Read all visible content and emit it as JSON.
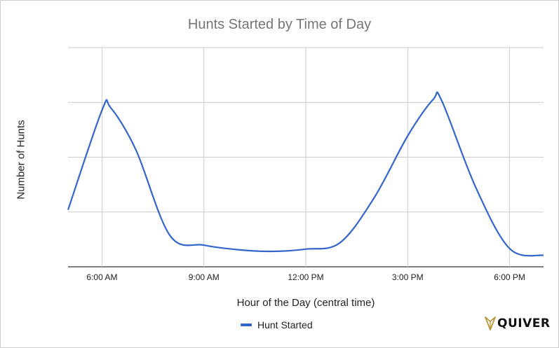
{
  "chart_data": {
    "type": "line",
    "title": "Hunts Started by Time of Day",
    "xlabel": "Hour of the Day (central time)",
    "ylabel": "Number of Hunts",
    "xlim": [
      "5:00 AM",
      "7:00 PM"
    ],
    "x_ticks": [
      "6:00 AM",
      "9:00 AM",
      "12:00 PM",
      "3:00 PM",
      "6:00 PM"
    ],
    "y_tick_labels_shown": false,
    "grid": true,
    "legend": "bottom",
    "series": [
      {
        "name": "Hunt Started",
        "color": "#3366cc",
        "x": [
          "5:00 AM",
          "6:00 AM",
          "6:15 AM",
          "7:00 AM",
          "8:00 AM",
          "9:00 AM",
          "10:00 AM",
          "11:00 AM",
          "12:00 PM",
          "1:00 PM",
          "2:00 PM",
          "3:00 PM",
          "3:45 PM",
          "4:00 PM",
          "5:00 PM",
          "6:00 PM",
          "7:00 PM"
        ],
        "values": [
          1.0,
          2.75,
          2.8,
          2.05,
          0.55,
          0.38,
          0.3,
          0.27,
          0.31,
          0.42,
          1.2,
          2.3,
          2.94,
          2.92,
          1.4,
          0.32,
          0.2
        ]
      }
    ],
    "ylim": [
      0,
      3.85
    ]
  },
  "logo": {
    "text": "QUIVER",
    "icon": "arrowhead-icon",
    "color": "#b8983c"
  }
}
